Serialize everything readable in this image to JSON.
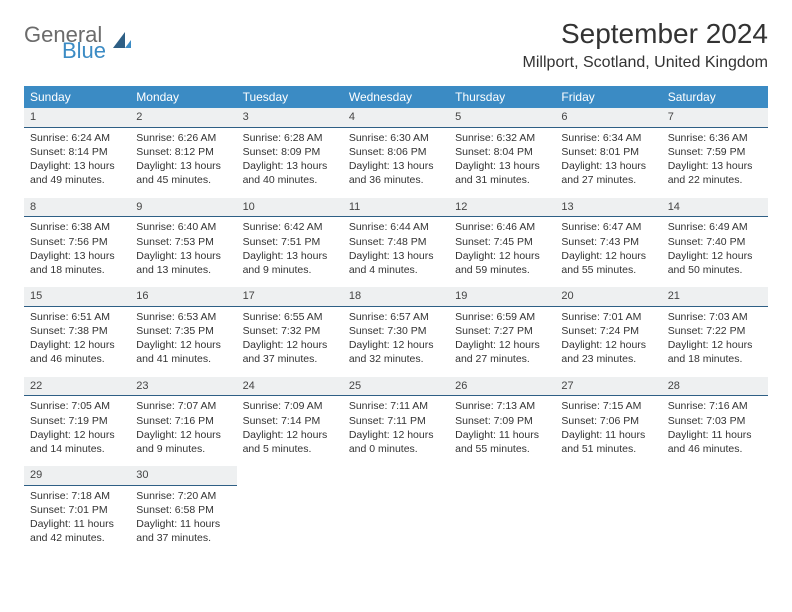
{
  "brand": {
    "general": "General",
    "blue": "Blue"
  },
  "header": {
    "title": "September 2024",
    "location": "Millport, Scotland, United Kingdom"
  },
  "colors": {
    "accent": "#3b8bc4",
    "header_text": "#ffffff",
    "day_bar_bg": "#eef0f1",
    "day_bar_border": "#2e5f85",
    "body_text": "#333333"
  },
  "columns": [
    "Sunday",
    "Monday",
    "Tuesday",
    "Wednesday",
    "Thursday",
    "Friday",
    "Saturday"
  ],
  "weeks": [
    [
      {
        "n": "1",
        "sunrise": "Sunrise: 6:24 AM",
        "sunset": "Sunset: 8:14 PM",
        "daylight": "Daylight: 13 hours and 49 minutes."
      },
      {
        "n": "2",
        "sunrise": "Sunrise: 6:26 AM",
        "sunset": "Sunset: 8:12 PM",
        "daylight": "Daylight: 13 hours and 45 minutes."
      },
      {
        "n": "3",
        "sunrise": "Sunrise: 6:28 AM",
        "sunset": "Sunset: 8:09 PM",
        "daylight": "Daylight: 13 hours and 40 minutes."
      },
      {
        "n": "4",
        "sunrise": "Sunrise: 6:30 AM",
        "sunset": "Sunset: 8:06 PM",
        "daylight": "Daylight: 13 hours and 36 minutes."
      },
      {
        "n": "5",
        "sunrise": "Sunrise: 6:32 AM",
        "sunset": "Sunset: 8:04 PM",
        "daylight": "Daylight: 13 hours and 31 minutes."
      },
      {
        "n": "6",
        "sunrise": "Sunrise: 6:34 AM",
        "sunset": "Sunset: 8:01 PM",
        "daylight": "Daylight: 13 hours and 27 minutes."
      },
      {
        "n": "7",
        "sunrise": "Sunrise: 6:36 AM",
        "sunset": "Sunset: 7:59 PM",
        "daylight": "Daylight: 13 hours and 22 minutes."
      }
    ],
    [
      {
        "n": "8",
        "sunrise": "Sunrise: 6:38 AM",
        "sunset": "Sunset: 7:56 PM",
        "daylight": "Daylight: 13 hours and 18 minutes."
      },
      {
        "n": "9",
        "sunrise": "Sunrise: 6:40 AM",
        "sunset": "Sunset: 7:53 PM",
        "daylight": "Daylight: 13 hours and 13 minutes."
      },
      {
        "n": "10",
        "sunrise": "Sunrise: 6:42 AM",
        "sunset": "Sunset: 7:51 PM",
        "daylight": "Daylight: 13 hours and 9 minutes."
      },
      {
        "n": "11",
        "sunrise": "Sunrise: 6:44 AM",
        "sunset": "Sunset: 7:48 PM",
        "daylight": "Daylight: 13 hours and 4 minutes."
      },
      {
        "n": "12",
        "sunrise": "Sunrise: 6:46 AM",
        "sunset": "Sunset: 7:45 PM",
        "daylight": "Daylight: 12 hours and 59 minutes."
      },
      {
        "n": "13",
        "sunrise": "Sunrise: 6:47 AM",
        "sunset": "Sunset: 7:43 PM",
        "daylight": "Daylight: 12 hours and 55 minutes."
      },
      {
        "n": "14",
        "sunrise": "Sunrise: 6:49 AM",
        "sunset": "Sunset: 7:40 PM",
        "daylight": "Daylight: 12 hours and 50 minutes."
      }
    ],
    [
      {
        "n": "15",
        "sunrise": "Sunrise: 6:51 AM",
        "sunset": "Sunset: 7:38 PM",
        "daylight": "Daylight: 12 hours and 46 minutes."
      },
      {
        "n": "16",
        "sunrise": "Sunrise: 6:53 AM",
        "sunset": "Sunset: 7:35 PM",
        "daylight": "Daylight: 12 hours and 41 minutes."
      },
      {
        "n": "17",
        "sunrise": "Sunrise: 6:55 AM",
        "sunset": "Sunset: 7:32 PM",
        "daylight": "Daylight: 12 hours and 37 minutes."
      },
      {
        "n": "18",
        "sunrise": "Sunrise: 6:57 AM",
        "sunset": "Sunset: 7:30 PM",
        "daylight": "Daylight: 12 hours and 32 minutes."
      },
      {
        "n": "19",
        "sunrise": "Sunrise: 6:59 AM",
        "sunset": "Sunset: 7:27 PM",
        "daylight": "Daylight: 12 hours and 27 minutes."
      },
      {
        "n": "20",
        "sunrise": "Sunrise: 7:01 AM",
        "sunset": "Sunset: 7:24 PM",
        "daylight": "Daylight: 12 hours and 23 minutes."
      },
      {
        "n": "21",
        "sunrise": "Sunrise: 7:03 AM",
        "sunset": "Sunset: 7:22 PM",
        "daylight": "Daylight: 12 hours and 18 minutes."
      }
    ],
    [
      {
        "n": "22",
        "sunrise": "Sunrise: 7:05 AM",
        "sunset": "Sunset: 7:19 PM",
        "daylight": "Daylight: 12 hours and 14 minutes."
      },
      {
        "n": "23",
        "sunrise": "Sunrise: 7:07 AM",
        "sunset": "Sunset: 7:16 PM",
        "daylight": "Daylight: 12 hours and 9 minutes."
      },
      {
        "n": "24",
        "sunrise": "Sunrise: 7:09 AM",
        "sunset": "Sunset: 7:14 PM",
        "daylight": "Daylight: 12 hours and 5 minutes."
      },
      {
        "n": "25",
        "sunrise": "Sunrise: 7:11 AM",
        "sunset": "Sunset: 7:11 PM",
        "daylight": "Daylight: 12 hours and 0 minutes."
      },
      {
        "n": "26",
        "sunrise": "Sunrise: 7:13 AM",
        "sunset": "Sunset: 7:09 PM",
        "daylight": "Daylight: 11 hours and 55 minutes."
      },
      {
        "n": "27",
        "sunrise": "Sunrise: 7:15 AM",
        "sunset": "Sunset: 7:06 PM",
        "daylight": "Daylight: 11 hours and 51 minutes."
      },
      {
        "n": "28",
        "sunrise": "Sunrise: 7:16 AM",
        "sunset": "Sunset: 7:03 PM",
        "daylight": "Daylight: 11 hours and 46 minutes."
      }
    ],
    [
      {
        "n": "29",
        "sunrise": "Sunrise: 7:18 AM",
        "sunset": "Sunset: 7:01 PM",
        "daylight": "Daylight: 11 hours and 42 minutes."
      },
      {
        "n": "30",
        "sunrise": "Sunrise: 7:20 AM",
        "sunset": "Sunset: 6:58 PM",
        "daylight": "Daylight: 11 hours and 37 minutes."
      },
      null,
      null,
      null,
      null,
      null
    ]
  ]
}
